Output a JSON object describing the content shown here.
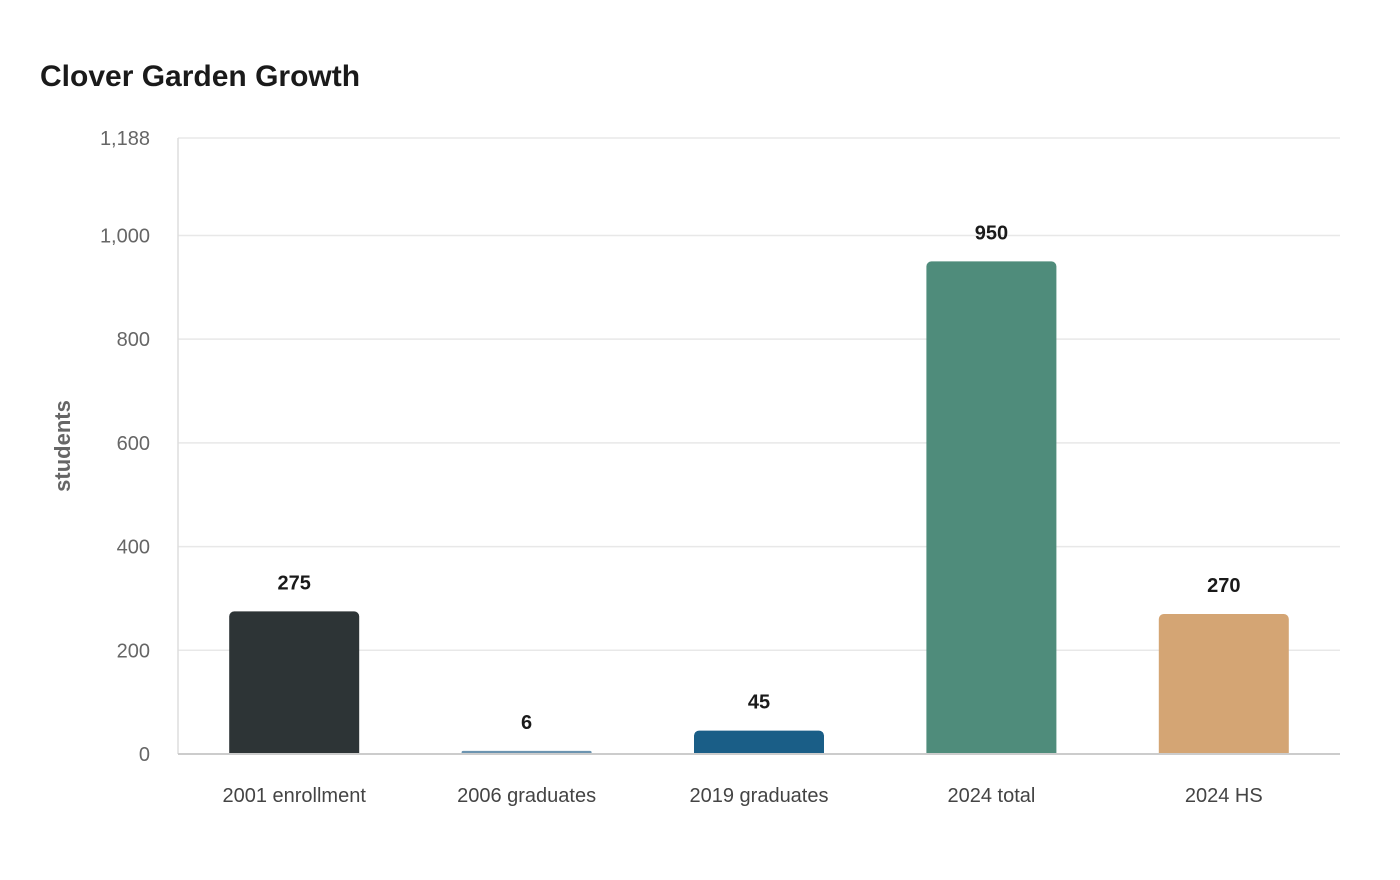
{
  "chart_data": {
    "type": "bar",
    "title": "Clover Garden Growth",
    "xlabel": "",
    "ylabel": "students",
    "categories": [
      "2001 enrollment",
      "2006 graduates",
      "2019 graduates",
      "2024 total",
      "2024 HS"
    ],
    "values": [
      275,
      6,
      45,
      950,
      270
    ],
    "value_labels": [
      "275",
      "6",
      "45",
      "950",
      "270"
    ],
    "colors": [
      "#2d3436",
      "#6c94b0",
      "#1a5e87",
      "#4f8c7b",
      "#d4a574"
    ],
    "ylim": [
      0,
      1188
    ],
    "yticks": [
      0,
      200,
      400,
      600,
      800,
      1000,
      1188
    ],
    "ytick_labels": [
      "0",
      "200",
      "400",
      "600",
      "800",
      "1,000",
      "1,188"
    ],
    "grid": true,
    "legend": "none"
  }
}
